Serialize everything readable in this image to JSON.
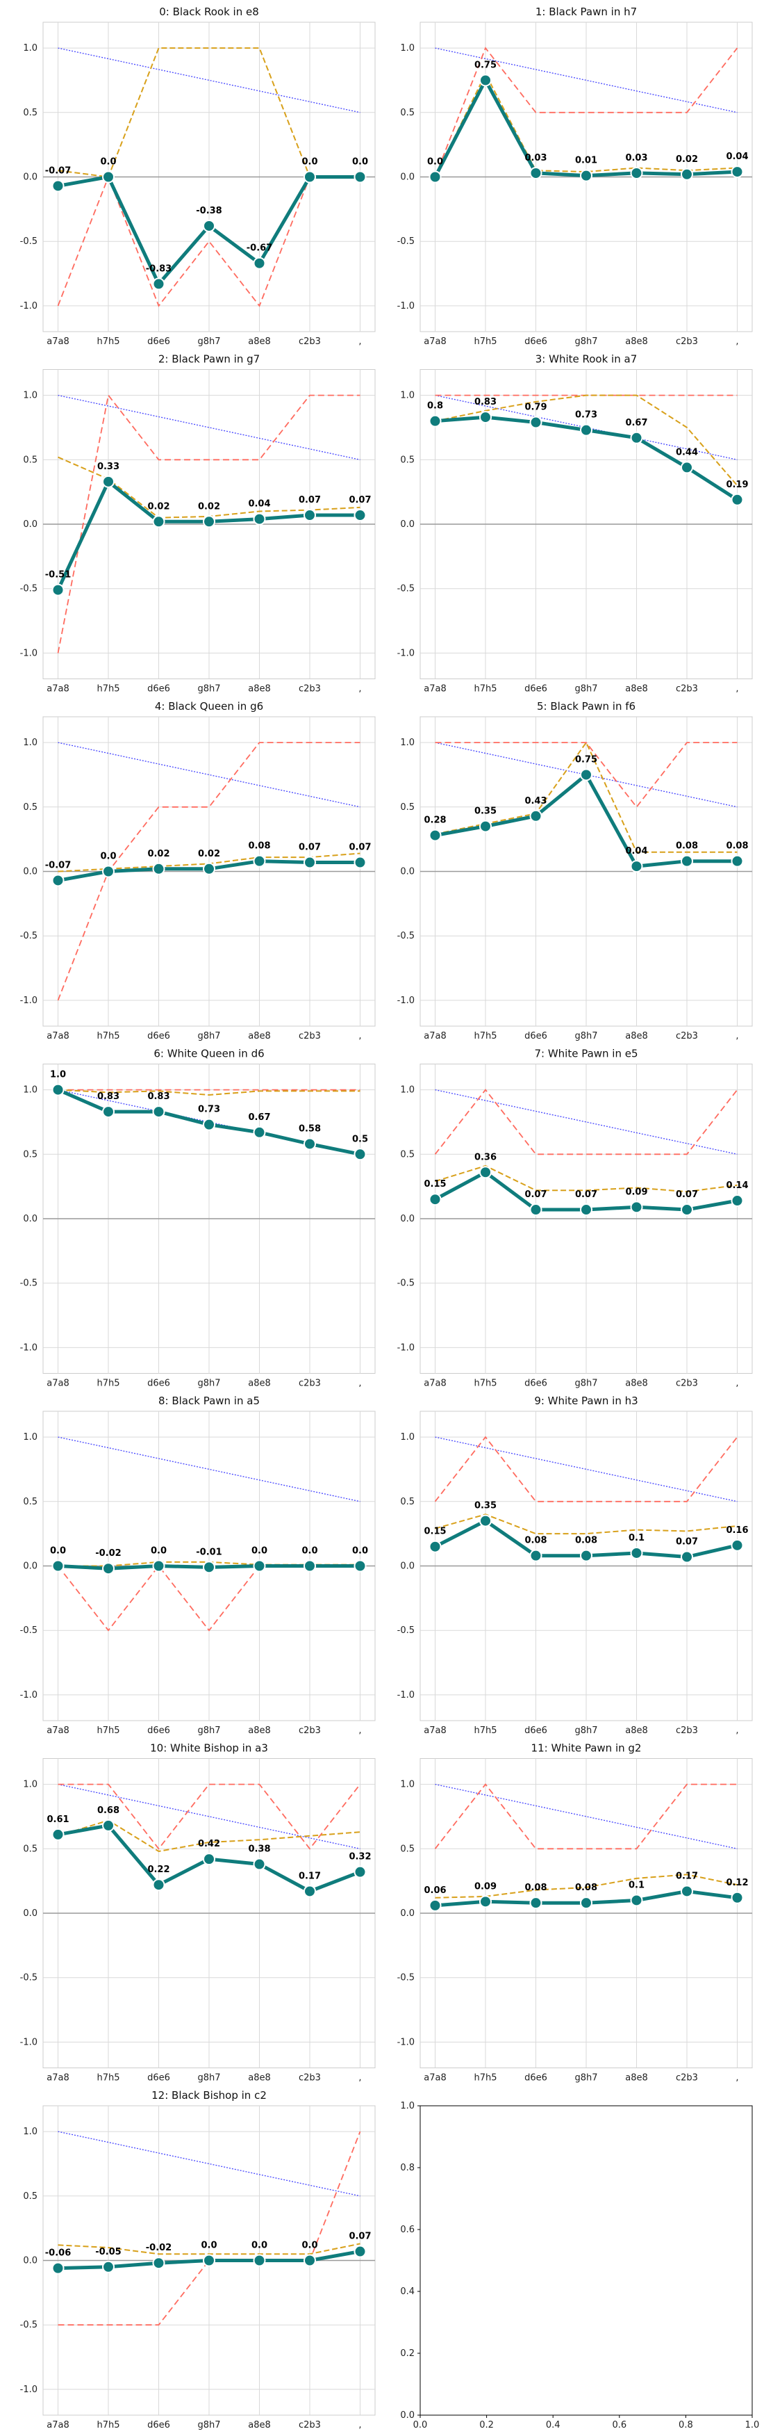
{
  "chart_data": [
    {
      "type": "line",
      "title": "0: Black Rook in e8",
      "categories": [
        "a7a8",
        "h7h5",
        "d6e6",
        "g8h7",
        "a8e8",
        "c2b3",
        ","
      ],
      "series": [
        {
          "role": "main",
          "values": [
            -0.07,
            0.0,
            -0.83,
            -0.38,
            -0.67,
            0.0,
            0.0
          ]
        },
        {
          "role": "red",
          "values": [
            -1,
            0,
            -1,
            -0.5,
            -1,
            0,
            0
          ]
        },
        {
          "role": "orange",
          "values": [
            0.05,
            0.0,
            1,
            1,
            1,
            0.0,
            0.0
          ]
        },
        {
          "role": "blue",
          "values": [
            1,
            0.9167,
            0.8333,
            0.75,
            0.6667,
            0.5833,
            0.5
          ]
        }
      ],
      "data_labels": [
        "-0.07",
        "0.0",
        "-0.83",
        "-0.38",
        "-0.67",
        "0.0",
        "0.0"
      ],
      "ylim": [
        -1.2,
        1.2
      ]
    },
    {
      "type": "line",
      "title": "1: Black Pawn in h7",
      "categories": [
        "a7a8",
        "h7h5",
        "d6e6",
        "g8h7",
        "a8e8",
        "c2b3",
        ","
      ],
      "series": [
        {
          "role": "main",
          "values": [
            0.0,
            0.75,
            0.03,
            0.01,
            0.03,
            0.02,
            0.04
          ]
        },
        {
          "role": "red",
          "values": [
            0,
            1,
            0.5,
            0.5,
            0.5,
            0.5,
            1
          ]
        },
        {
          "role": "orange",
          "values": [
            0.0,
            0.8,
            0.05,
            0.04,
            0.07,
            0.05,
            0.07
          ]
        },
        {
          "role": "blue",
          "values": [
            1,
            0.9167,
            0.8333,
            0.75,
            0.6667,
            0.5833,
            0.5
          ]
        }
      ],
      "data_labels": [
        "0.0",
        "0.75",
        "0.03",
        "0.01",
        "0.03",
        "0.02",
        "0.04"
      ],
      "ylim": [
        -1.2,
        1.2
      ]
    },
    {
      "type": "line",
      "title": "2: Black Pawn in g7",
      "categories": [
        "a7a8",
        "h7h5",
        "d6e6",
        "g8h7",
        "a8e8",
        "c2b3",
        ","
      ],
      "series": [
        {
          "role": "main",
          "values": [
            -0.51,
            0.33,
            0.02,
            0.02,
            0.04,
            0.07,
            0.07
          ]
        },
        {
          "role": "red",
          "values": [
            -1,
            1,
            0.5,
            0.5,
            0.5,
            1,
            1
          ]
        },
        {
          "role": "orange",
          "values": [
            0.52,
            0.35,
            0.05,
            0.06,
            0.1,
            0.11,
            0.13
          ]
        },
        {
          "role": "blue",
          "values": [
            1,
            0.9167,
            0.8333,
            0.75,
            0.6667,
            0.5833,
            0.5
          ]
        }
      ],
      "data_labels": [
        "-0.51",
        "0.33",
        "0.02",
        "0.02",
        "0.04",
        "0.07",
        "0.07"
      ],
      "ylim": [
        -1.2,
        1.2
      ]
    },
    {
      "type": "line",
      "title": "3: White Rook in a7",
      "categories": [
        "a7a8",
        "h7h5",
        "d6e6",
        "g8h7",
        "a8e8",
        "c2b3",
        ","
      ],
      "series": [
        {
          "role": "main",
          "values": [
            0.8,
            0.83,
            0.79,
            0.73,
            0.67,
            0.44,
            0.19
          ]
        },
        {
          "role": "red",
          "values": [
            1,
            1,
            1,
            1,
            1,
            1,
            1
          ]
        },
        {
          "role": "orange",
          "values": [
            0.8,
            0.88,
            0.95,
            1,
            1,
            0.75,
            0.3
          ]
        },
        {
          "role": "blue",
          "values": [
            1,
            0.9167,
            0.8333,
            0.75,
            0.6667,
            0.5833,
            0.5
          ]
        }
      ],
      "data_labels": [
        "0.8",
        "0.83",
        "0.79",
        "0.73",
        "0.67",
        "0.44",
        "0.19"
      ],
      "ylim": [
        -1.2,
        1.2
      ]
    },
    {
      "type": "line",
      "title": "4: Black Queen in g6",
      "categories": [
        "a7a8",
        "h7h5",
        "d6e6",
        "g8h7",
        "a8e8",
        "c2b3",
        ","
      ],
      "series": [
        {
          "role": "main",
          "values": [
            -0.07,
            0.0,
            0.02,
            0.02,
            0.08,
            0.07,
            0.07
          ]
        },
        {
          "role": "red",
          "values": [
            -1,
            0,
            0.5,
            0.5,
            1,
            1,
            1
          ]
        },
        {
          "role": "orange",
          "values": [
            0.0,
            0.02,
            0.04,
            0.06,
            0.11,
            0.11,
            0.14
          ]
        },
        {
          "role": "blue",
          "values": [
            1,
            0.9167,
            0.8333,
            0.75,
            0.6667,
            0.5833,
            0.5
          ]
        }
      ],
      "data_labels": [
        "-0.07",
        "0.0",
        "0.02",
        "0.02",
        "0.08",
        "0.07",
        "0.07"
      ],
      "ylim": [
        -1.2,
        1.2
      ]
    },
    {
      "type": "line",
      "title": "5: Black Pawn in f6",
      "categories": [
        "a7a8",
        "h7h5",
        "d6e6",
        "g8h7",
        "a8e8",
        "c2b3",
        ","
      ],
      "series": [
        {
          "role": "main",
          "values": [
            0.28,
            0.35,
            0.43,
            0.75,
            0.04,
            0.08,
            0.08
          ]
        },
        {
          "role": "red",
          "values": [
            1,
            1,
            1,
            1,
            0.5,
            1,
            1
          ]
        },
        {
          "role": "orange",
          "values": [
            0.29,
            0.37,
            0.45,
            1,
            0.15,
            0.15,
            0.15
          ]
        },
        {
          "role": "blue",
          "values": [
            1,
            0.9167,
            0.8333,
            0.75,
            0.6667,
            0.5833,
            0.5
          ]
        }
      ],
      "data_labels": [
        "0.28",
        "0.35",
        "0.43",
        "0.75",
        "0.04",
        "0.08",
        "0.08"
      ],
      "ylim": [
        -1.2,
        1.2
      ]
    },
    {
      "type": "line",
      "title": "6: White Queen in d6",
      "categories": [
        "a7a8",
        "h7h5",
        "d6e6",
        "g8h7",
        "a8e8",
        "c2b3",
        ","
      ],
      "series": [
        {
          "role": "main",
          "values": [
            1.0,
            0.83,
            0.83,
            0.73,
            0.67,
            0.58,
            0.5
          ]
        },
        {
          "role": "red",
          "values": [
            1,
            1,
            1,
            1,
            1,
            1,
            1
          ]
        },
        {
          "role": "orange",
          "values": [
            1.0,
            0.98,
            0.99,
            0.96,
            0.99,
            0.99,
            0.99
          ]
        },
        {
          "role": "blue",
          "values": [
            1,
            0.9167,
            0.8333,
            0.75,
            0.6667,
            0.5833,
            0.5
          ]
        }
      ],
      "data_labels": [
        "1.0",
        "0.83",
        "0.83",
        "0.73",
        "0.67",
        "0.58",
        "0.5"
      ],
      "ylim": [
        -1.2,
        1.2
      ]
    },
    {
      "type": "line",
      "title": "7: White Pawn in e5",
      "categories": [
        "a7a8",
        "h7h5",
        "d6e6",
        "g8h7",
        "a8e8",
        "c2b3",
        ","
      ],
      "series": [
        {
          "role": "main",
          "values": [
            0.15,
            0.36,
            0.07,
            0.07,
            0.09,
            0.07,
            0.14
          ]
        },
        {
          "role": "red",
          "values": [
            0.5,
            1,
            0.5,
            0.5,
            0.5,
            0.5,
            1
          ]
        },
        {
          "role": "orange",
          "values": [
            0.29,
            0.41,
            0.22,
            0.22,
            0.24,
            0.21,
            0.26
          ]
        },
        {
          "role": "blue",
          "values": [
            1,
            0.9167,
            0.8333,
            0.75,
            0.6667,
            0.5833,
            0.5
          ]
        }
      ],
      "data_labels": [
        "0.15",
        "0.36",
        "0.07",
        "0.07",
        "0.09",
        "0.07",
        "0.14"
      ],
      "ylim": [
        -1.2,
        1.2
      ]
    },
    {
      "type": "line",
      "title": "8: Black Pawn in a5",
      "categories": [
        "a7a8",
        "h7h5",
        "d6e6",
        "g8h7",
        "a8e8",
        "c2b3",
        ","
      ],
      "series": [
        {
          "role": "main",
          "values": [
            0.0,
            -0.02,
            0.0,
            -0.01,
            0.0,
            0.0,
            0.0
          ]
        },
        {
          "role": "red",
          "values": [
            0,
            -0.5,
            0,
            -0.5,
            0,
            0,
            0
          ]
        },
        {
          "role": "orange",
          "values": [
            0.0,
            0.0,
            0.03,
            0.03,
            0.01,
            0.01,
            0.01
          ]
        },
        {
          "role": "blue",
          "values": [
            1,
            0.9167,
            0.8333,
            0.75,
            0.6667,
            0.5833,
            0.5
          ]
        }
      ],
      "data_labels": [
        "0.0",
        "-0.02",
        "0.0",
        "-0.01",
        "0.0",
        "0.0",
        "0.0"
      ],
      "ylim": [
        -1.2,
        1.2
      ]
    },
    {
      "type": "line",
      "title": "9: White Pawn in h3",
      "categories": [
        "a7a8",
        "h7h5",
        "d6e6",
        "g8h7",
        "a8e8",
        "c2b3",
        ","
      ],
      "series": [
        {
          "role": "main",
          "values": [
            0.15,
            0.35,
            0.08,
            0.08,
            0.1,
            0.07,
            0.16
          ]
        },
        {
          "role": "red",
          "values": [
            0.5,
            1,
            0.5,
            0.5,
            0.5,
            0.5,
            1
          ]
        },
        {
          "role": "orange",
          "values": [
            0.29,
            0.4,
            0.25,
            0.25,
            0.28,
            0.27,
            0.31
          ]
        },
        {
          "role": "blue",
          "values": [
            1,
            0.9167,
            0.8333,
            0.75,
            0.6667,
            0.5833,
            0.5
          ]
        }
      ],
      "data_labels": [
        "0.15",
        "0.35",
        "0.08",
        "0.08",
        "0.1",
        "0.07",
        "0.16"
      ],
      "ylim": [
        -1.2,
        1.2
      ]
    },
    {
      "type": "line",
      "title": "10: White Bishop in a3",
      "categories": [
        "a7a8",
        "h7h5",
        "d6e6",
        "g8h7",
        "a8e8",
        "c2b3",
        ","
      ],
      "series": [
        {
          "role": "main",
          "values": [
            0.61,
            0.68,
            0.22,
            0.42,
            0.38,
            0.17,
            0.32
          ]
        },
        {
          "role": "red",
          "values": [
            1,
            1,
            0.5,
            1,
            1,
            0.5,
            1
          ]
        },
        {
          "role": "orange",
          "values": [
            0.6,
            0.72,
            0.48,
            0.55,
            0.57,
            0.6,
            0.63
          ]
        },
        {
          "role": "blue",
          "values": [
            1,
            0.9167,
            0.8333,
            0.75,
            0.6667,
            0.5833,
            0.5
          ]
        }
      ],
      "data_labels": [
        "0.61",
        "0.68",
        "0.22",
        "0.42",
        "0.38",
        "0.17",
        "0.32"
      ],
      "ylim": [
        -1.2,
        1.2
      ]
    },
    {
      "type": "line",
      "title": "11: White Pawn in g2",
      "categories": [
        "a7a8",
        "h7h5",
        "d6e6",
        "g8h7",
        "a8e8",
        "c2b3",
        ","
      ],
      "series": [
        {
          "role": "main",
          "values": [
            0.06,
            0.09,
            0.08,
            0.08,
            0.1,
            0.17,
            0.12
          ]
        },
        {
          "role": "red",
          "values": [
            0.5,
            1,
            0.5,
            0.5,
            0.5,
            1,
            1
          ]
        },
        {
          "role": "orange",
          "values": [
            0.12,
            0.13,
            0.18,
            0.2,
            0.27,
            0.3,
            0.22
          ]
        },
        {
          "role": "blue",
          "values": [
            1,
            0.9167,
            0.8333,
            0.75,
            0.6667,
            0.5833,
            0.5
          ]
        }
      ],
      "data_labels": [
        "0.06",
        "0.09",
        "0.08",
        "0.08",
        "0.1",
        "0.17",
        "0.12"
      ],
      "ylim": [
        -1.2,
        1.2
      ]
    },
    {
      "type": "line",
      "title": "12: Black Bishop in c2",
      "categories": [
        "a7a8",
        "h7h5",
        "d6e6",
        "g8h7",
        "a8e8",
        "c2b3",
        ","
      ],
      "series": [
        {
          "role": "main",
          "values": [
            -0.06,
            -0.05,
            -0.02,
            0.0,
            0.0,
            0.0,
            0.07
          ]
        },
        {
          "role": "red",
          "values": [
            -0.5,
            -0.5,
            -0.5,
            0,
            0,
            0,
            1
          ]
        },
        {
          "role": "orange",
          "values": [
            0.12,
            0.1,
            0.05,
            0.05,
            0.05,
            0.05,
            0.13
          ]
        },
        {
          "role": "blue",
          "values": [
            1,
            0.9167,
            0.8333,
            0.75,
            0.6667,
            0.5833,
            0.5
          ]
        }
      ],
      "data_labels": [
        "-0.06",
        "-0.05",
        "-0.02",
        "0.0",
        "0.0",
        "0.0",
        "0.07"
      ],
      "ylim": [
        -1.2,
        1.2
      ]
    },
    {
      "type": "line",
      "title": "",
      "categories": [],
      "series": [],
      "empty": true,
      "xlim": [
        0,
        1
      ],
      "ylim": [
        0,
        1
      ],
      "xticks": [
        "0.0",
        "0.2",
        "0.4",
        "0.6",
        "0.8",
        "1.0"
      ],
      "yticks": [
        "0.0",
        "0.2",
        "0.4",
        "0.6",
        "0.8",
        "1.0"
      ]
    }
  ],
  "yticks": [
    "-1.0",
    "-0.5",
    "0.0",
    "0.5",
    "1.0"
  ],
  "colors": {
    "main": "#0f7c7c",
    "red": "#ff6b5f",
    "orange": "#d8a01a",
    "blue": "#4444ff",
    "grid": "#d9d9d9",
    "zero": "#999999"
  }
}
